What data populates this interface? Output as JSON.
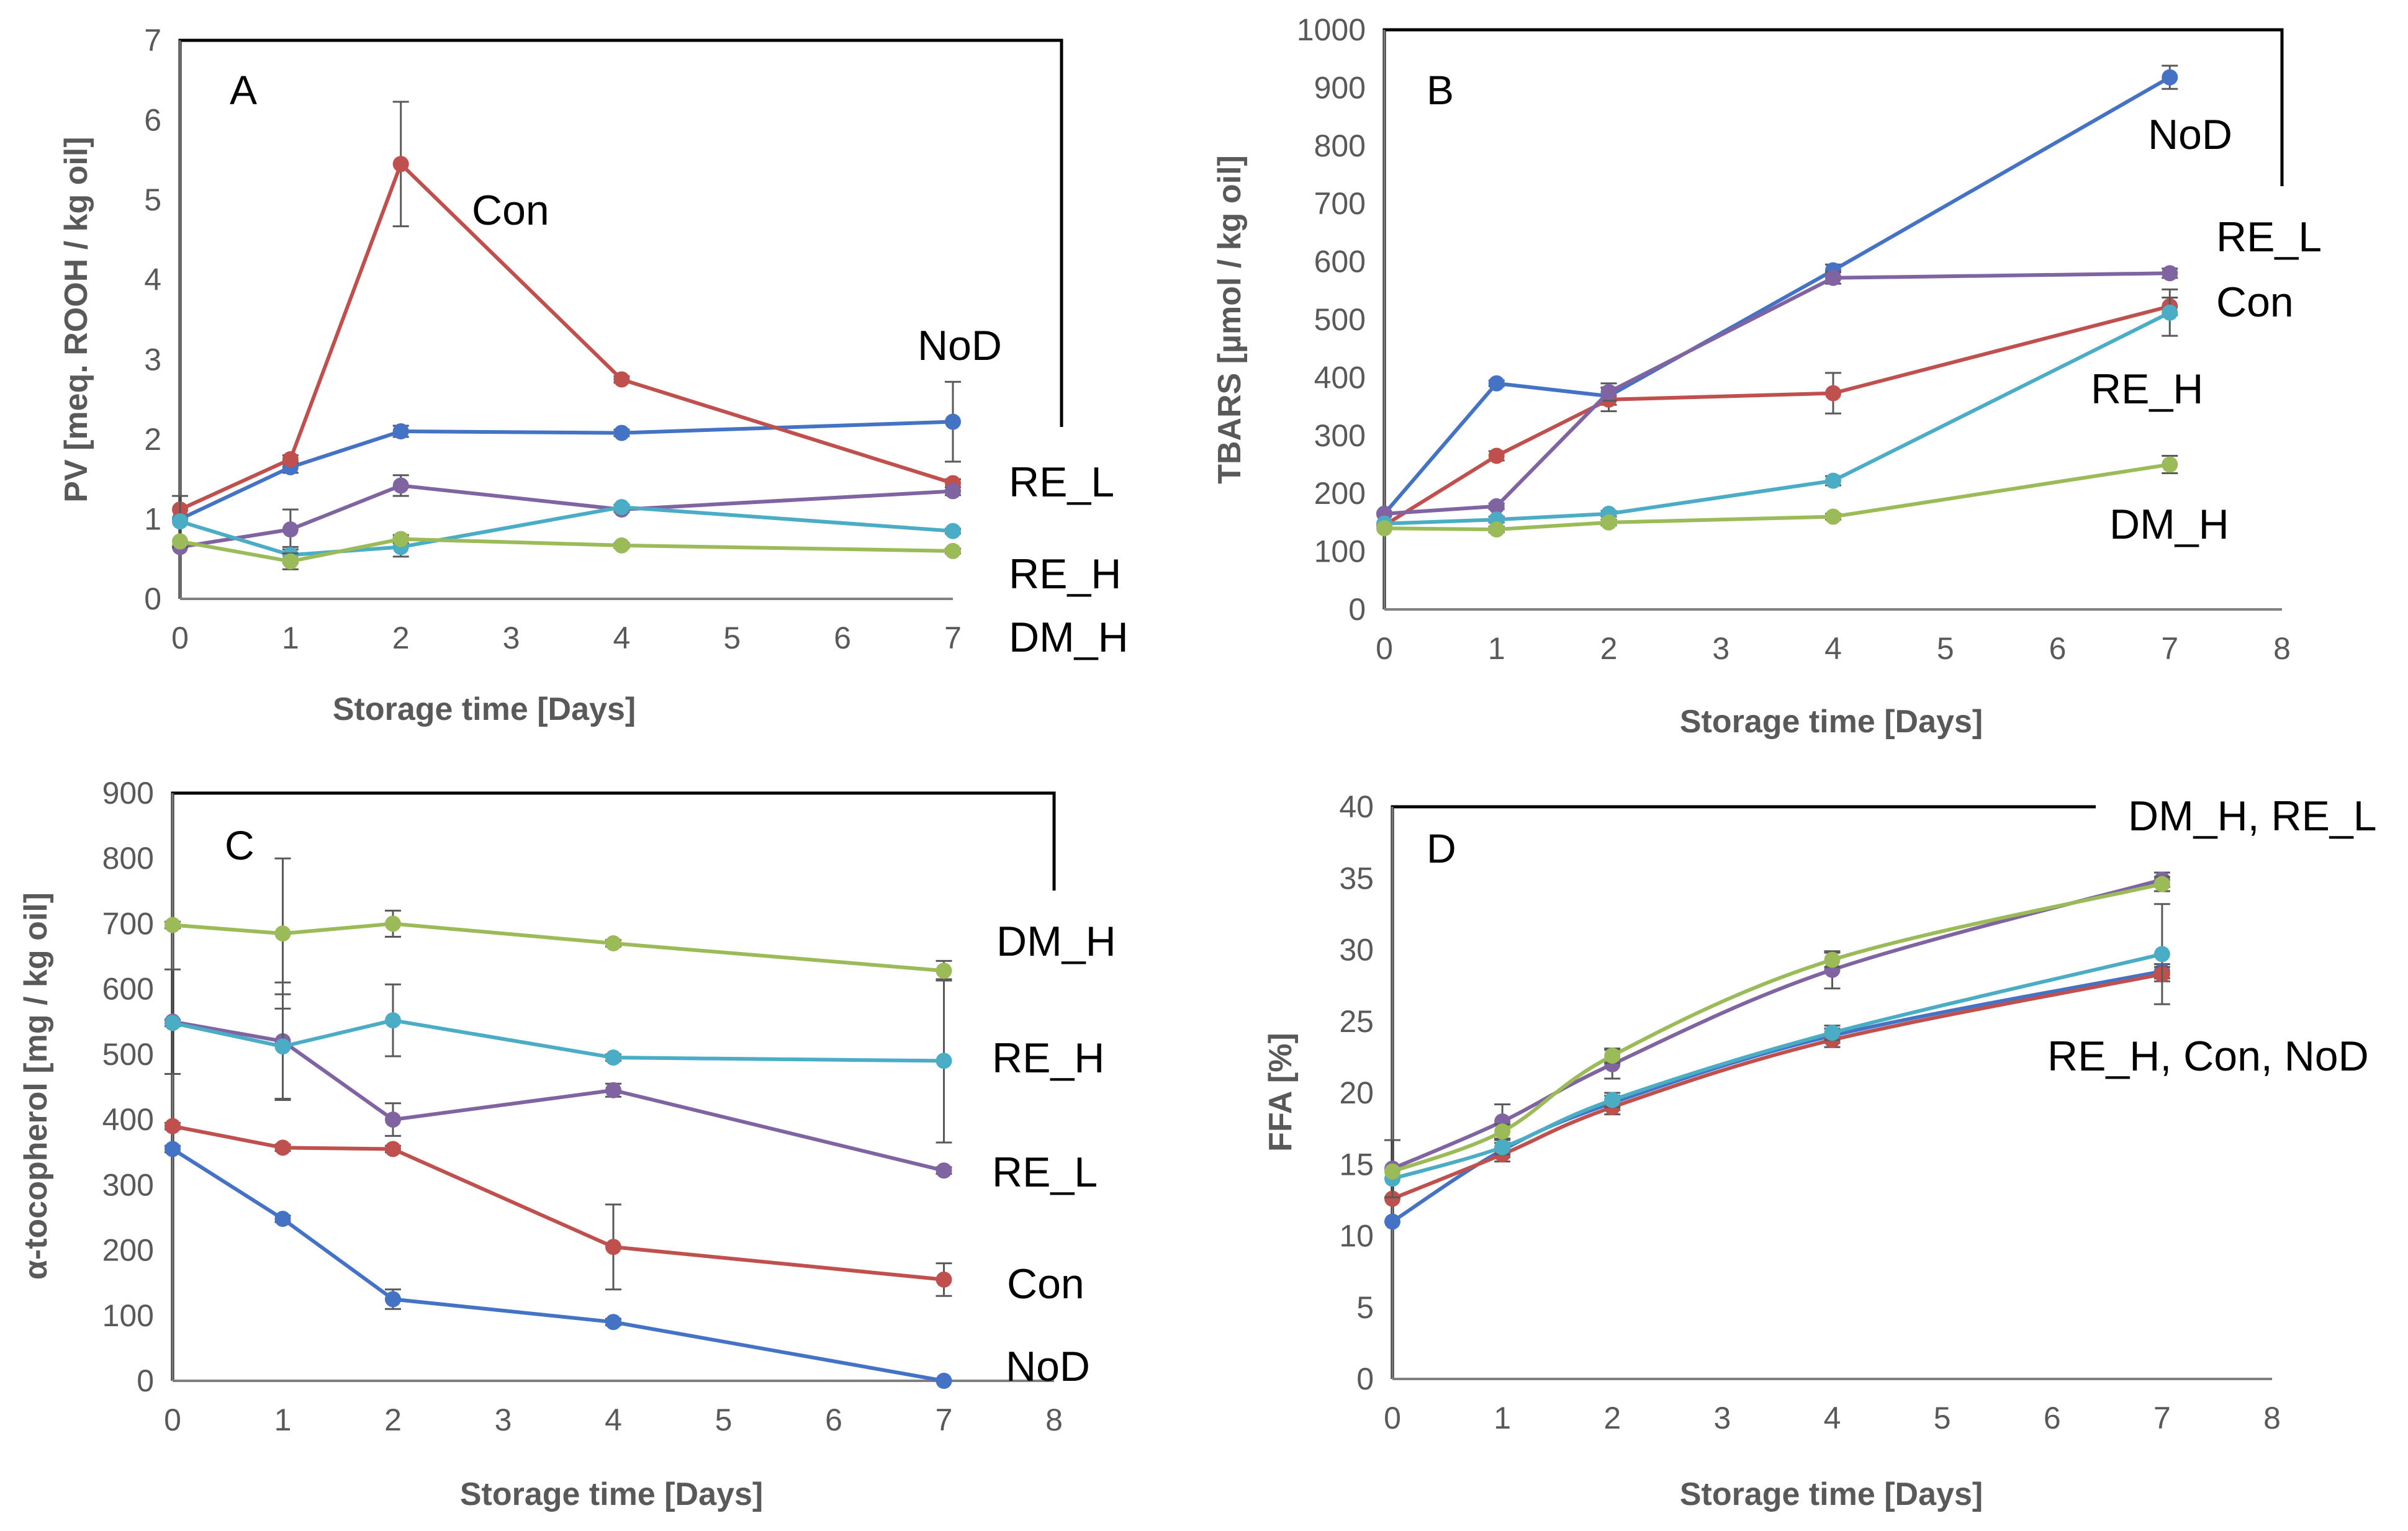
{
  "chart_data": [
    {
      "type": "line",
      "panel": "A",
      "xlabel": "Storage time [Days]",
      "ylabel": "PV [meq. ROOH / kg oil]",
      "xlim": [
        0,
        7
      ],
      "ylim": [
        0,
        7
      ],
      "xticks": [
        0,
        1,
        2,
        3,
        4,
        5,
        6,
        7
      ],
      "yticks": [
        0,
        1,
        2,
        3,
        4,
        5,
        6,
        7
      ],
      "x": [
        0,
        1,
        2,
        4,
        7
      ],
      "series": [
        {
          "name": "NoD",
          "color": "#4472C4",
          "values": [
            1.0,
            1.65,
            2.1,
            2.08,
            2.22
          ],
          "errors": [
            0,
            0.07,
            0.07,
            0.04,
            0.5
          ]
        },
        {
          "name": "Con",
          "color": "#C0504D",
          "values": [
            1.12,
            1.75,
            5.45,
            2.75,
            1.45
          ],
          "errors": [
            0,
            0.05,
            0.78,
            0.04,
            0.05
          ]
        },
        {
          "name": "RE_L",
          "color": "#8064A2",
          "values": [
            0.65,
            0.87,
            1.42,
            1.12,
            1.35
          ],
          "errors": [
            0,
            0.25,
            0.13,
            0.03,
            0.05
          ]
        },
        {
          "name": "RE_H",
          "color": "#4BACC6",
          "values": [
            0.97,
            0.55,
            0.65,
            1.15,
            0.85
          ],
          "errors": [
            0.32,
            0.1,
            0.12,
            0.03,
            0.03
          ]
        },
        {
          "name": "DM_H",
          "color": "#9BBB59",
          "values": [
            0.72,
            0.47,
            0.75,
            0.67,
            0.6
          ],
          "errors": [
            0,
            0.1,
            0.05,
            0.03,
            0.03
          ]
        }
      ],
      "annotations": [
        {
          "text": "A",
          "kind": "panel-letter"
        },
        {
          "text": "Con"
        },
        {
          "text": "NoD"
        },
        {
          "text": "RE_L"
        },
        {
          "text": "RE_H"
        },
        {
          "text": "DM_H"
        }
      ]
    },
    {
      "type": "line",
      "panel": "B",
      "xlabel": "Storage time [Days]",
      "ylabel": "TBARS [µmol / kg oil]",
      "xlim": [
        0,
        8
      ],
      "ylim": [
        0,
        1000
      ],
      "xticks": [
        0,
        1,
        2,
        3,
        4,
        5,
        6,
        7,
        8
      ],
      "yticks": [
        0,
        100,
        200,
        300,
        400,
        500,
        600,
        700,
        800,
        900,
        1000
      ],
      "x": [
        0,
        1,
        2,
        4,
        7
      ],
      "series": [
        {
          "name": "NoD",
          "color": "#4472C4",
          "values": [
            165,
            390,
            368,
            585,
            918
          ],
          "errors": [
            0,
            5,
            15,
            10,
            20
          ]
        },
        {
          "name": "Con",
          "color": "#C0504D",
          "values": [
            145,
            265,
            362,
            373,
            523
          ],
          "errors": [
            0,
            8,
            20,
            35,
            15
          ]
        },
        {
          "name": "RE_L",
          "color": "#8064A2",
          "values": [
            165,
            178,
            375,
            572,
            580
          ],
          "errors": [
            0,
            5,
            15,
            10,
            8
          ]
        },
        {
          "name": "RE_H",
          "color": "#4BACC6",
          "values": [
            148,
            155,
            165,
            222,
            512
          ],
          "errors": [
            0,
            5,
            5,
            8,
            40
          ]
        },
        {
          "name": "DM_H",
          "color": "#9BBB59",
          "values": [
            140,
            138,
            150,
            160,
            250
          ],
          "errors": [
            0,
            5,
            5,
            5,
            15
          ]
        }
      ],
      "annotations": [
        {
          "text": "B",
          "kind": "panel-letter"
        },
        {
          "text": "NoD"
        },
        {
          "text": "RE_L"
        },
        {
          "text": "Con"
        },
        {
          "text": "RE_H"
        },
        {
          "text": "DM_H"
        }
      ]
    },
    {
      "type": "line",
      "panel": "C",
      "xlabel": "Storage time [Days]",
      "ylabel": "α-tocopherol [mg / kg oil]",
      "xlim": [
        0,
        8
      ],
      "ylim": [
        0,
        900
      ],
      "xticks": [
        0,
        1,
        2,
        3,
        4,
        5,
        6,
        7,
        8
      ],
      "yticks": [
        0,
        100,
        200,
        300,
        400,
        500,
        600,
        700,
        800,
        900
      ],
      "x": [
        0,
        1,
        2,
        4,
        7
      ],
      "series": [
        {
          "name": "NoD",
          "color": "#4472C4",
          "values": [
            355,
            248,
            125,
            90,
            0
          ],
          "errors": [
            5,
            5,
            15,
            5,
            0
          ]
        },
        {
          "name": "Con",
          "color": "#C0504D",
          "values": [
            390,
            357,
            355,
            205,
            155
          ],
          "errors": [
            5,
            5,
            5,
            65,
            25
          ]
        },
        {
          "name": "RE_L",
          "color": "#8064A2",
          "values": [
            550,
            520,
            400,
            445,
            322
          ],
          "errors": [
            80,
            90,
            25,
            10,
            5
          ]
        },
        {
          "name": "RE_H",
          "color": "#4BACC6",
          "values": [
            548,
            512,
            552,
            495,
            490
          ],
          "errors": [
            5,
            80,
            55,
            5,
            125
          ]
        },
        {
          "name": "DM_H",
          "color": "#9BBB59",
          "values": [
            698,
            685,
            700,
            670,
            628
          ],
          "errors": [
            5,
            115,
            20,
            5,
            15
          ]
        }
      ],
      "annotations": [
        {
          "text": "C",
          "kind": "panel-letter"
        },
        {
          "text": "DM_H"
        },
        {
          "text": "RE_H"
        },
        {
          "text": "RE_L"
        },
        {
          "text": "Con"
        },
        {
          "text": "NoD"
        }
      ]
    },
    {
      "type": "line",
      "panel": "D",
      "xlabel": "Storage time [Days]",
      "ylabel": "FFA [%]",
      "xlim": [
        0,
        8
      ],
      "ylim": [
        0,
        40
      ],
      "xticks": [
        0,
        1,
        2,
        3,
        4,
        5,
        6,
        7,
        8
      ],
      "yticks": [
        0,
        5,
        10,
        15,
        20,
        25,
        30,
        35,
        40
      ],
      "x": [
        0,
        1,
        2,
        4,
        7
      ],
      "series": [
        {
          "name": "NoD",
          "color": "#4472C4",
          "values": [
            11.0,
            16.0,
            19.3,
            24.0,
            28.5
          ],
          "errors": [
            0,
            0.5,
            0.5,
            0.5,
            0.5
          ]
        },
        {
          "name": "Con",
          "color": "#C0504D",
          "values": [
            12.6,
            15.7,
            19.0,
            23.7,
            28.3
          ],
          "errors": [
            0,
            0.5,
            0.5,
            0.5,
            0.5
          ]
        },
        {
          "name": "RE_L",
          "color": "#8064A2",
          "values": [
            14.7,
            18.0,
            22.0,
            28.6,
            34.9
          ],
          "errors": [
            2.0,
            1.2,
            1.0,
            1.3,
            0.5
          ]
        },
        {
          "name": "RE_H",
          "color": "#4BACC6",
          "values": [
            14.0,
            16.2,
            19.5,
            24.2,
            29.7
          ],
          "errors": [
            0,
            0.5,
            0.5,
            0.5,
            3.5
          ]
        },
        {
          "name": "DM_H",
          "color": "#9BBB59",
          "values": [
            14.5,
            17.3,
            22.6,
            29.3,
            34.6
          ],
          "errors": [
            0,
            0.5,
            0.5,
            0.5,
            0.5
          ]
        }
      ],
      "annotations": [
        {
          "text": "D",
          "kind": "panel-letter"
        },
        {
          "text": "DM_H, RE_L"
        },
        {
          "text": "RE_H, Con, NoD"
        }
      ]
    }
  ]
}
